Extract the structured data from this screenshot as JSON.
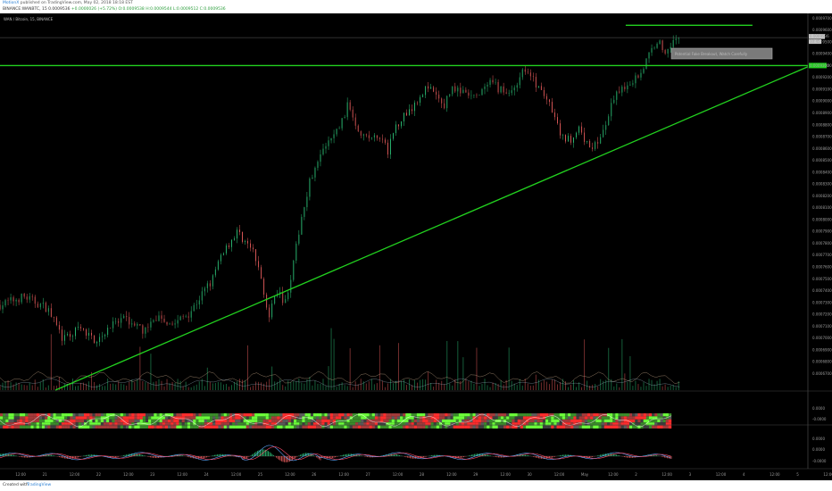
{
  "header": {
    "author": "MotionX",
    "published": "published on TradingView.com, May 02, 2018 18:18 EST",
    "symbol_line": "BINANCE:WANBTC, 15",
    "open": "0.0009536",
    "change": "+0.0000026 (+5.72%)",
    "ohlc": "O:0.0009538 H:0.0009544 L:0.0009512 C:0.0009536"
  },
  "chart_data": {
    "type": "candlestick",
    "title": "WAN / Bitcoin, 15, BINANCE",
    "ylim": [
      0.000656,
      0.000968
    ],
    "y_ticks": [
      "0.0009700",
      "0.0009600",
      "0.0009500",
      "0.0009400",
      "0.0009300",
      "0.0009200",
      "0.0009100",
      "0.0009000",
      "0.0008900",
      "0.0008800",
      "0.0008700",
      "0.0008600",
      "0.0008500",
      "0.0008400",
      "0.0008300",
      "0.0008200",
      "0.0008100",
      "0.0008000",
      "0.0007900",
      "0.0007800",
      "0.0007700",
      "0.0007600",
      "0.0007500",
      "0.0007400",
      "0.0007300",
      "0.0007200",
      "0.0007100",
      "0.0007000",
      "0.0006900",
      "0.0006800",
      "0.0006700"
    ],
    "x_ticks": [
      "12:00",
      "21",
      "12:00",
      "22",
      "12:00",
      "23",
      "12:00",
      "24",
      "12:00",
      "25",
      "12:00",
      "26",
      "12:00",
      "27",
      "12:00",
      "28",
      "12:00",
      "29",
      "12:00",
      "30",
      "12:00",
      "May",
      "12:00",
      "2",
      "12:00",
      "3",
      "12:00",
      "4",
      "12:00",
      "5",
      "12:00"
    ],
    "price_path": [
      [
        0,
        0.000728
      ],
      [
        3,
        0.000735
      ],
      [
        6,
        0.000725
      ],
      [
        8,
        0.000698
      ],
      [
        10,
        0.000708
      ],
      [
        12,
        0.000698
      ],
      [
        14,
        0.00071
      ],
      [
        16,
        0.000716
      ],
      [
        18,
        0.000706
      ],
      [
        20,
        0.000718
      ],
      [
        22,
        0.000712
      ],
      [
        24,
        0.000722
      ],
      [
        26,
        0.000742
      ],
      [
        27,
        0.000752
      ],
      [
        28,
        0.000772
      ],
      [
        30,
        0.00079
      ],
      [
        32,
        0.000772
      ],
      [
        33,
        0.00075
      ],
      [
        34,
        0.000718
      ],
      [
        35,
        0.00074
      ],
      [
        36,
        0.00073
      ],
      [
        37,
        0.00076
      ],
      [
        38,
        0.0008
      ],
      [
        39,
        0.00083
      ],
      [
        40,
        0.00085
      ],
      [
        42,
        0.00087
      ],
      [
        43,
        0.00088
      ],
      [
        44,
        0.000898
      ],
      [
        45,
        0.00088
      ],
      [
        46,
        0.00087
      ],
      [
        48,
        0.000868
      ],
      [
        49,
        0.000858
      ],
      [
        50,
        0.00088
      ],
      [
        52,
        0.000895
      ],
      [
        53,
        0.000905
      ],
      [
        54,
        0.000912
      ],
      [
        55,
        0.000905
      ],
      [
        56,
        0.000895
      ],
      [
        57,
        0.000912
      ],
      [
        58,
        0.000908
      ],
      [
        60,
        0.000902
      ],
      [
        62,
        0.000915
      ],
      [
        64,
        0.000906
      ],
      [
        65,
        0.000912
      ],
      [
        66,
        0.000928
      ],
      [
        67,
        0.00092
      ],
      [
        68,
        0.000912
      ],
      [
        69,
        0.000902
      ],
      [
        70,
        0.000885
      ],
      [
        71,
        0.000868
      ],
      [
        72,
        0.000868
      ],
      [
        73,
        0.000876
      ],
      [
        74,
        0.000865
      ],
      [
        75,
        0.000862
      ],
      [
        76,
        0.00087
      ],
      [
        77,
        0.000892
      ],
      [
        78,
        0.000908
      ],
      [
        80,
        0.000918
      ],
      [
        81,
        0.000925
      ],
      [
        82,
        0.00094
      ],
      [
        83,
        0.000952
      ],
      [
        84,
        0.00094
      ],
      [
        85,
        0.000954
      ],
      [
        86,
        0.000949
      ]
    ],
    "series": [
      {
        "name": "Volume",
        "type": "bar"
      },
      {
        "name": "Heatmap",
        "type": "heatmap"
      },
      {
        "name": "Oscillator",
        "type": "line"
      }
    ],
    "right_labels": {
      "last_price": "0.0009536",
      "countdown": "10:45",
      "support": "0.0009300"
    },
    "trendlines": [
      {
        "color": "#22d11f",
        "from": [
          7,
          0.000656
        ],
        "to": [
          102,
          0.000929
        ]
      },
      {
        "color": "#22d11f",
        "from": [
          0,
          0.00093
        ],
        "to": [
          102,
          0.00093
        ]
      },
      {
        "color": "#22d11f",
        "from": [
          79,
          0.000964
        ],
        "to": [
          95,
          0.000964
        ]
      }
    ],
    "annotation": "Potential Fake Breakout, Watch Carefully",
    "grid": false
  },
  "footer": {
    "created": "Created with",
    "brand": "TradingView"
  },
  "colors": {
    "up": "#2bbd74",
    "down": "#e25a5a",
    "trend": "#22d11f"
  }
}
